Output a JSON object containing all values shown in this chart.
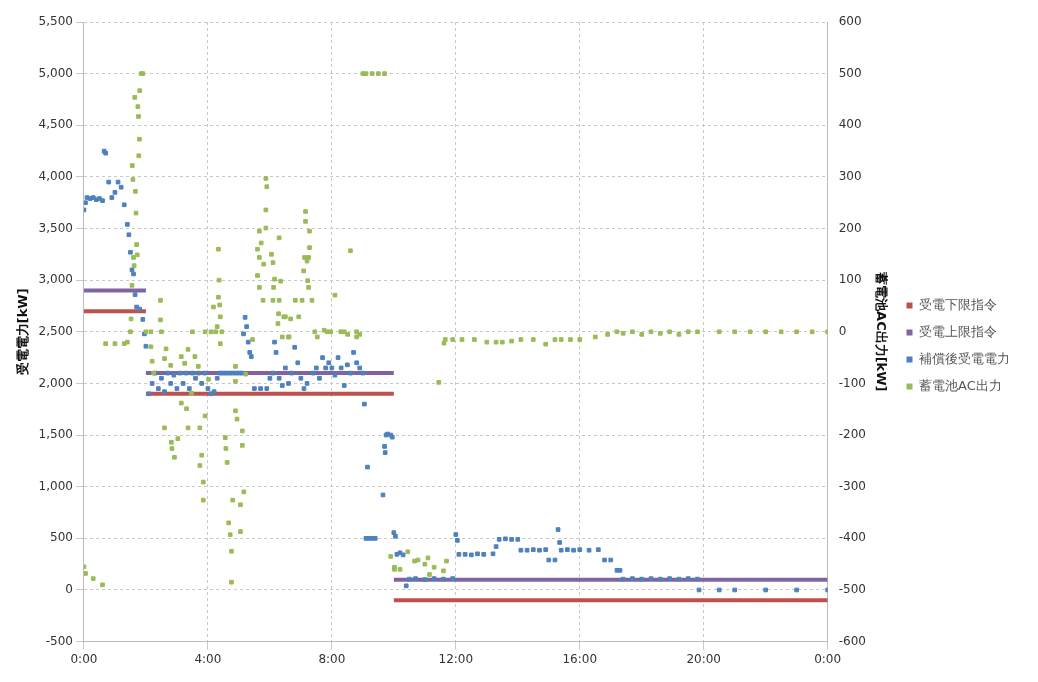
{
  "chart_data": {
    "type": "scatter",
    "ylabel": "受電電力[kW]",
    "y2label": "蓄電池AC出力[kW]",
    "xlim": [
      0,
      24
    ],
    "xticks": [
      {
        "value": 0,
        "label": "0:00"
      },
      {
        "value": 4,
        "label": "4:00"
      },
      {
        "value": 8,
        "label": "8:00"
      },
      {
        "value": 12,
        "label": "12:00"
      },
      {
        "value": 16,
        "label": "16:00"
      },
      {
        "value": 20,
        "label": "20:00"
      },
      {
        "value": 24,
        "label": "0:00"
      }
    ],
    "ylim": [
      -500,
      5500
    ],
    "yticks": [
      -500,
      0,
      500,
      {
        "value": 1000,
        "label": "1,000"
      },
      {
        "value": 1500,
        "label": "1,500"
      },
      {
        "value": 2000,
        "label": "2,000"
      },
      {
        "value": 2500,
        "label": "2,500"
      },
      {
        "value": 3000,
        "label": "3,000"
      },
      {
        "value": 3500,
        "label": "3,500"
      },
      {
        "value": 4000,
        "label": "4,000"
      },
      {
        "value": 4500,
        "label": "4,500"
      },
      {
        "value": 5000,
        "label": "5,000"
      },
      {
        "value": 5500,
        "label": "5,500"
      }
    ],
    "y2lim": [
      -600,
      600
    ],
    "y2ticks": [
      -600,
      -500,
      -400,
      -300,
      -200,
      -100,
      0,
      100,
      200,
      300,
      400,
      500,
      600
    ],
    "grid": true,
    "legend": "right",
    "marker": "square",
    "series": [
      {
        "name": "受電下限指令",
        "type": "line",
        "marker": "none",
        "color": "#c0504d",
        "x": [
          0,
          2,
          2,
          10,
          10,
          24
        ],
        "values": [
          2700,
          2700,
          1900,
          1900,
          -100,
          -100
        ]
      },
      {
        "name": "受電上限指令",
        "type": "line",
        "marker": "none",
        "color": "#8064a2",
        "x": [
          0,
          2,
          2,
          10,
          10,
          24
        ],
        "values": [
          2900,
          2900,
          2100,
          2100,
          100,
          100
        ]
      },
      {
        "name": "補償後受電電力",
        "color": "#4f81bd",
        "x": [
          0,
          0.05,
          0.1,
          0.2,
          0.3,
          0.4,
          0.5,
          0.6,
          0.65,
          0.7,
          0.8,
          0.9,
          1.0,
          1.1,
          1.2,
          1.3,
          1.4,
          1.45,
          1.5,
          1.55,
          1.6,
          1.65,
          1.7,
          1.8,
          1.9,
          1.95,
          2.0,
          2.1,
          2.2,
          2.3,
          2.4,
          2.5,
          2.6,
          2.7,
          2.8,
          2.9,
          3.0,
          3.1,
          3.2,
          3.3,
          3.4,
          3.5,
          3.6,
          3.7,
          3.8,
          3.9,
          4.0,
          4.1,
          4.2,
          4.3,
          4.4,
          4.5,
          4.6,
          4.7,
          4.8,
          4.9,
          5.0,
          5.1,
          5.15,
          5.2,
          5.25,
          5.3,
          5.35,
          5.4,
          5.5,
          5.7,
          5.9,
          6.0,
          6.1,
          6.15,
          6.2,
          6.3,
          6.4,
          6.5,
          6.6,
          6.7,
          6.8,
          6.9,
          7.0,
          7.1,
          7.2,
          7.4,
          7.5,
          7.6,
          7.7,
          7.8,
          7.9,
          8.0,
          8.1,
          8.2,
          8.3,
          8.4,
          8.5,
          8.6,
          8.7,
          8.8,
          8.9,
          9.0,
          9.05,
          9.1,
          9.15,
          9.2,
          9.3,
          9.4,
          9.65,
          9.7,
          9.72,
          9.75,
          9.8,
          9.9,
          9.95,
          10.0,
          10.05,
          10.1,
          10.2,
          10.3,
          10.4,
          10.5,
          10.7,
          11.0,
          11.3,
          11.6,
          11.9,
          12.0,
          12.05,
          12.1,
          12.3,
          12.5,
          12.7,
          12.9,
          13.2,
          13.3,
          13.4,
          13.6,
          13.8,
          14.0,
          14.1,
          14.3,
          14.5,
          14.7,
          14.9,
          15.0,
          15.2,
          15.3,
          15.35,
          15.4,
          15.6,
          15.8,
          16.0,
          16.3,
          16.6,
          16.8,
          17.0,
          17.2,
          17.3,
          17.4,
          17.7,
          18.0,
          18.3,
          18.6,
          18.9,
          19.2,
          19.5,
          19.8,
          19.85,
          20.5,
          21,
          22,
          23,
          24
        ],
        "values": [
          3680,
          3750,
          3800,
          3790,
          3800,
          3780,
          3790,
          3770,
          4250,
          4230,
          3950,
          3800,
          3850,
          3950,
          3900,
          3730,
          3540,
          3440,
          3270,
          3100,
          3060,
          2860,
          2740,
          2720,
          2620,
          2480,
          2360,
          1900,
          2000,
          2100,
          1950,
          2050,
          1920,
          2100,
          2000,
          2080,
          1950,
          2100,
          2000,
          2100,
          1950,
          2100,
          2050,
          2100,
          2000,
          2100,
          1950,
          1900,
          1920,
          2050,
          2100,
          2100,
          2100,
          2100,
          2100,
          2100,
          2100,
          2100,
          2480,
          2640,
          2550,
          2400,
          2300,
          2260,
          1950,
          1950,
          1950,
          2050,
          2100,
          2400,
          2300,
          2050,
          1980,
          2150,
          2000,
          2100,
          2350,
          2200,
          2050,
          1950,
          2000,
          2100,
          2150,
          2050,
          2250,
          2150,
          2200,
          2150,
          2080,
          2250,
          2150,
          1980,
          2180,
          2100,
          2300,
          2200,
          2150,
          2100,
          1800,
          500,
          1190,
          500,
          500,
          500,
          920,
          1390,
          1330,
          1500,
          1510,
          1500,
          1480,
          555,
          520,
          345,
          360,
          340,
          40,
          105,
          110,
          100,
          110,
          105,
          110,
          537,
          480,
          345,
          345,
          340,
          350,
          345,
          350,
          420,
          490,
          495,
          490,
          490,
          385,
          385,
          390,
          385,
          390,
          290,
          290,
          585,
          460,
          385,
          390,
          385,
          390,
          385,
          390,
          290,
          290,
          190,
          190,
          105,
          110,
          105,
          110,
          105,
          110,
          105,
          110,
          105,
          0,
          0,
          0,
          0,
          0,
          0
        ]
      },
      {
        "name": "蓄電池AC出力",
        "color": "#9bbb59",
        "axis": "y2",
        "x": [
          0,
          0.05,
          0.3,
          0.6,
          0.7,
          1.0,
          1.3,
          1.4,
          1.5,
          1.52,
          1.55,
          1.56,
          1.58,
          1.6,
          1.62,
          1.64,
          1.66,
          1.68,
          1.7,
          1.72,
          1.74,
          1.76,
          1.77,
          1.79,
          1.8,
          1.85,
          1.9,
          2.0,
          2.16,
          2.16,
          2.2,
          2.25,
          2.47,
          2.47,
          2.5,
          2.6,
          2.6,
          2.65,
          2.8,
          2.82,
          2.84,
          2.92,
          3.03,
          3.14,
          3.14,
          3.25,
          3.31,
          3.36,
          3.36,
          3.47,
          3.5,
          3.58,
          3.69,
          3.74,
          3.74,
          3.8,
          3.85,
          3.85,
          3.91,
          3.91,
          4.02,
          4.1,
          4.18,
          4.25,
          4.3,
          4.34,
          4.34,
          4.36,
          4.38,
          4.4,
          4.4,
          4.45,
          4.56,
          4.58,
          4.62,
          4.67,
          4.72,
          4.76,
          4.76,
          4.8,
          4.89,
          4.89,
          4.89,
          4.94,
          5.05,
          5.05,
          5.11,
          5.11,
          5.16,
          5.22,
          5.44,
          5.6,
          5.66,
          5.72,
          5.87,
          5.9,
          5.87,
          5.87,
          5.66,
          5.6,
          5.66,
          5.8,
          6.05,
          6.1,
          6.15,
          6.12,
          5.78,
          6.1,
          6.3,
          6.3,
          6.35,
          6.28,
          6.26,
          6.4,
          6.45,
          6.5,
          6.6,
          6.62,
          6.67,
          6.82,
          6.93,
          7.04,
          7.09,
          7.12,
          7.15,
          7.15,
          7.2,
          7.22,
          7.25,
          7.28,
          7.28,
          7.25,
          7.36,
          7.45,
          7.53,
          7.75,
          7.85,
          7.96,
          8.1,
          8.29,
          8.4,
          8.51,
          8.6,
          8.8,
          8.8,
          8.9,
          9.0,
          9.1,
          9.3,
          9.5,
          9.7,
          9.9,
          10.02,
          10.02,
          10.2,
          10.45,
          10.67,
          10.78,
          11.0,
          11.15,
          11.1,
          11.3,
          11.45,
          11.6,
          11.7,
          11.62,
          11.66,
          11.9,
          12.2,
          12.6,
          13.0,
          13.3,
          13.5,
          13.8,
          14.1,
          14.5,
          14.9,
          15.2,
          15.4,
          15.7,
          16.0,
          16.5,
          16.9,
          17.2,
          17.4,
          17.7,
          18.0,
          18.3,
          18.6,
          18.9,
          19.2,
          19.5,
          19.8,
          20.5,
          21.0,
          21.5,
          22.0,
          22.5,
          23.0,
          23.5,
          24.0
        ],
        "values": [
          -455,
          -468,
          -478,
          -490,
          -23,
          -23,
          -23,
          -20,
          0,
          25,
          90,
          322,
          295,
          144,
          128,
          454,
          272,
          230,
          169,
          149,
          436,
          417,
          341,
          373,
          467,
          500,
          500,
          0,
          -29,
          0,
          -57,
          -80,
          61,
          23,
          0,
          -186,
          -52,
          -33,
          -65,
          -214,
          -226,
          -243,
          -207,
          -48,
          -138,
          -61,
          -149,
          -34,
          -186,
          -119,
          0,
          -48,
          -67,
          -186,
          -259,
          -239,
          -291,
          -326,
          -163,
          0,
          -92,
          0,
          48,
          0,
          10,
          67,
          160,
          100,
          52,
          29,
          -23,
          0,
          -205,
          -226,
          -253,
          -370,
          -393,
          -425,
          -485,
          -326,
          -67,
          -96,
          -153,
          -169,
          -335,
          -387,
          -192,
          -220,
          -310,
          -82,
          -15,
          160,
          195,
          172,
          297,
          281,
          236,
          201,
          144,
          109,
          86,
          131,
          150,
          134,
          102,
          86,
          61,
          61,
          61,
          182,
          98,
          35,
          16,
          -10,
          29,
          29,
          -10,
          -10,
          25,
          61,
          29,
          61,
          118,
          144,
          214,
          233,
          137,
          99,
          86,
          163,
          195,
          144,
          61,
          0,
          -10,
          3,
          0,
          0,
          71,
          0,
          0,
          -5,
          157,
          0,
          -10,
          -5,
          500,
          500,
          500,
          500,
          500,
          -435,
          -456,
          -460,
          -460,
          -426,
          -444,
          -442,
          -450,
          -470,
          -438,
          -456,
          -98,
          -463,
          -444,
          -22,
          -15,
          -15,
          -15,
          -15,
          -20,
          -20,
          -20,
          -18,
          -15,
          -15,
          -24,
          -15,
          -15,
          -15,
          -15,
          -10,
          -5,
          0,
          -3,
          0,
          -5,
          0,
          -3,
          0,
          -5,
          0,
          0,
          0,
          0,
          0,
          0,
          0,
          0,
          0,
          0
        ]
      }
    ]
  }
}
